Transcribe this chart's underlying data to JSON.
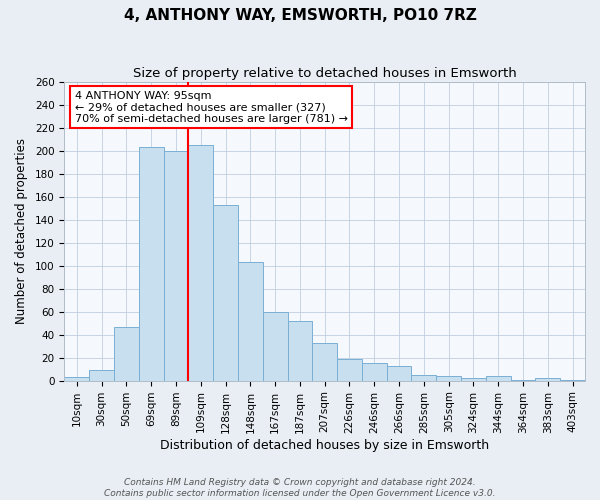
{
  "title": "4, ANTHONY WAY, EMSWORTH, PO10 7RZ",
  "subtitle": "Size of property relative to detached houses in Emsworth",
  "xlabel": "Distribution of detached houses by size in Emsworth",
  "ylabel": "Number of detached properties",
  "categories": [
    "10sqm",
    "30sqm",
    "50sqm",
    "69sqm",
    "89sqm",
    "109sqm",
    "128sqm",
    "148sqm",
    "167sqm",
    "187sqm",
    "207sqm",
    "226sqm",
    "246sqm",
    "266sqm",
    "285sqm",
    "305sqm",
    "324sqm",
    "344sqm",
    "364sqm",
    "383sqm",
    "403sqm"
  ],
  "values": [
    3,
    9,
    47,
    203,
    200,
    205,
    153,
    103,
    60,
    52,
    33,
    19,
    15,
    13,
    5,
    4,
    2,
    4,
    1,
    2,
    1
  ],
  "bar_color": "#c8dff0",
  "bar_edge_color": "#7aafd4",
  "vline_x": 4.5,
  "vline_color": "red",
  "ylim": [
    0,
    260
  ],
  "yticks": [
    0,
    20,
    40,
    60,
    80,
    100,
    120,
    140,
    160,
    180,
    200,
    220,
    240,
    260
  ],
  "annotation_title": "4 ANTHONY WAY: 95sqm",
  "annotation_line1": "← 29% of detached houses are smaller (327)",
  "annotation_line2": "70% of semi-detached houses are larger (781) →",
  "annotation_box_color": "white",
  "annotation_box_edge": "red",
  "footer1": "Contains HM Land Registry data © Crown copyright and database right 2024.",
  "footer2": "Contains public sector information licensed under the Open Government Licence v3.0.",
  "background_color": "#e8eef4",
  "plot_bg_color": "#f5f8fc",
  "grid_color": "#c0cfe0",
  "title_fontsize": 11,
  "subtitle_fontsize": 9.5,
  "xlabel_fontsize": 9,
  "ylabel_fontsize": 8.5,
  "tick_fontsize": 7.5,
  "footer_fontsize": 6.5
}
